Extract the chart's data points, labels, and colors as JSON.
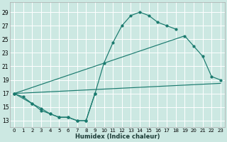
{
  "xlabel": "Humidex (Indice chaleur)",
  "bg_color": "#cce8e2",
  "grid_color": "#ffffff",
  "line_color": "#1a7a6e",
  "xlim": [
    -0.5,
    23.5
  ],
  "ylim": [
    12.0,
    30.5
  ],
  "xticks": [
    0,
    1,
    2,
    3,
    4,
    5,
    6,
    7,
    8,
    9,
    10,
    11,
    12,
    13,
    14,
    15,
    16,
    17,
    18,
    19,
    20,
    21,
    22,
    23
  ],
  "yticks": [
    13,
    15,
    17,
    19,
    21,
    23,
    25,
    27,
    29
  ],
  "line1_x": [
    0,
    1,
    2,
    3,
    4,
    5,
    6,
    7,
    8,
    9,
    10,
    11,
    12,
    13,
    14,
    15,
    16,
    17,
    18
  ],
  "line1_y": [
    17.0,
    16.5,
    15.5,
    14.5,
    14.0,
    13.5,
    13.5,
    13.0,
    13.0,
    17.0,
    21.5,
    24.5,
    27.0,
    28.5,
    29.0,
    28.5,
    27.5,
    27.0,
    26.5
  ],
  "line2_x": [
    0,
    19,
    20,
    21,
    22,
    23
  ],
  "line2_y": [
    17.0,
    25.5,
    24.0,
    22.5,
    19.5,
    19.0
  ],
  "line3_x": [
    0,
    23
  ],
  "line3_y": [
    17.0,
    18.5
  ],
  "line4_x": [
    0,
    2,
    3,
    4,
    5,
    6,
    7,
    8,
    9
  ],
  "line4_y": [
    17.0,
    15.5,
    14.8,
    14.0,
    13.5,
    13.5,
    13.0,
    13.0,
    17.0
  ],
  "xtick_fontsize": 5.0,
  "ytick_fontsize": 5.5,
  "xlabel_fontsize": 6.0
}
